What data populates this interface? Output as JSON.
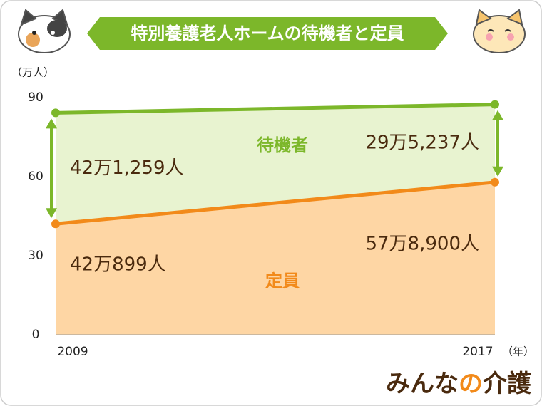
{
  "chart_data": {
    "type": "stacked-area",
    "title": "特別養護老人ホームの待機者と定員",
    "y_unit": "（万人）",
    "x_unit": "（年）",
    "x": [
      2009,
      2017
    ],
    "xlim": [
      2009,
      2017
    ],
    "xticks": [
      2009,
      2017
    ],
    "ylim": [
      0,
      90
    ],
    "yticks": [
      0,
      30,
      60,
      90
    ],
    "series": [
      {
        "name": "定員",
        "color": "#f28a1a",
        "fill": "#fed6a4",
        "values": [
          42.0899,
          57.89
        ],
        "value_labels": [
          "42万899人",
          "57万8,900人"
        ]
      },
      {
        "name": "待機者",
        "color": "#7cb72a",
        "fill": "#e8f3d0",
        "values": [
          42.1259,
          29.5237
        ],
        "value_labels": [
          "42万1,259人",
          "29万5,237人"
        ]
      }
    ],
    "brand": [
      "みんな",
      "の",
      "介護"
    ]
  }
}
